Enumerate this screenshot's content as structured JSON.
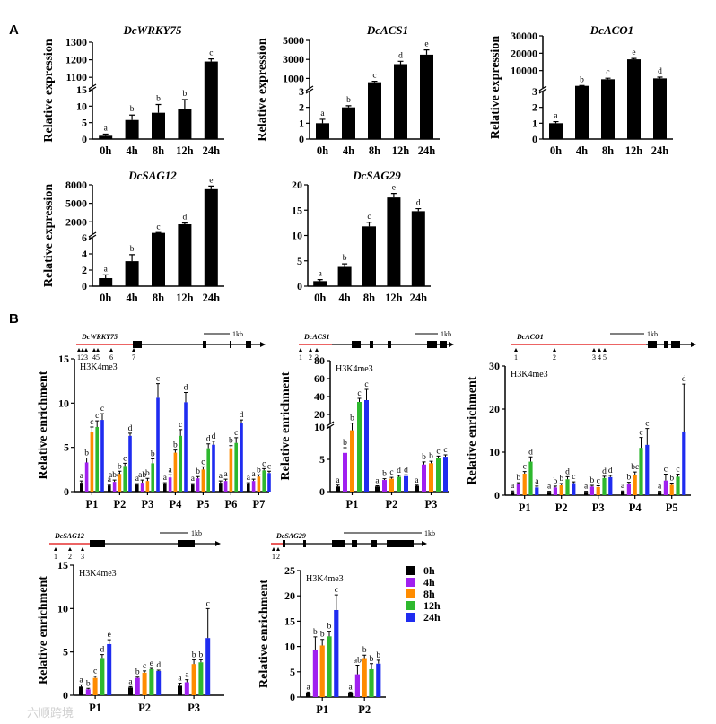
{
  "panel_labels": [
    "A",
    "B"
  ],
  "watermark": "六顺跨境",
  "colors": {
    "0h": "#000000",
    "4h": "#a020f0",
    "8h": "#ff8c00",
    "12h": "#2eb82e",
    "24h": "#1f2cf0",
    "promoter": "#e53030",
    "gene": "#000000"
  },
  "chart_data": [
    {
      "id": "wrky75",
      "type": "bar",
      "title": "DcWRKY75",
      "ylabel": "Relative expression",
      "categories": [
        "0h",
        "4h",
        "8h",
        "12h",
        "24h"
      ],
      "values": [
        1.0,
        5.8,
        8.0,
        9.0,
        1190
      ],
      "errors": [
        0.5,
        1.5,
        2.5,
        3.0,
        15
      ],
      "letters": [
        "a",
        "b",
        "b",
        "b",
        "c"
      ],
      "broken_axis": true,
      "lower_ticks": [
        "0",
        "5",
        "10",
        "15"
      ],
      "upper_ticks": [
        "1100",
        "1200",
        "1300"
      ],
      "lower_range": [
        0,
        15
      ],
      "upper_range": [
        1050,
        1300
      ]
    },
    {
      "id": "acs1",
      "type": "bar",
      "title": "DcACS1",
      "ylabel": "Relative expression",
      "categories": [
        "0h",
        "4h",
        "8h",
        "12h",
        "24h"
      ],
      "values": [
        1.0,
        2.0,
        600,
        2500,
        3500
      ],
      "errors": [
        0.25,
        0.1,
        100,
        300,
        500
      ],
      "letters": [
        "a",
        "b",
        "c",
        "d",
        "e"
      ],
      "broken_axis": true,
      "lower_ticks": [
        "0",
        "1",
        "2",
        "3"
      ],
      "upper_ticks": [
        "1000",
        "3000",
        "5000"
      ],
      "lower_range": [
        0,
        3
      ],
      "upper_range": [
        0,
        5000
      ]
    },
    {
      "id": "aco1",
      "type": "bar",
      "title": "DcACO1",
      "ylabel": "Relative expression",
      "categories": [
        "0h",
        "4h",
        "8h",
        "12h",
        "24h"
      ],
      "values": [
        1.0,
        1200,
        5000,
        16500,
        5500
      ],
      "errors": [
        0.1,
        200,
        600,
        500,
        700
      ],
      "letters": [
        "a",
        "b",
        "c",
        "e",
        "d"
      ],
      "broken_axis": true,
      "lower_ticks": [
        "0",
        "1",
        "2",
        "3"
      ],
      "upper_ticks": [
        "10000",
        "20000",
        "30000"
      ],
      "lower_range": [
        0,
        3
      ],
      "upper_range": [
        0,
        30000
      ]
    },
    {
      "id": "sag12",
      "type": "bar",
      "title": "DcSAG12",
      "ylabel": "Relative expression",
      "categories": [
        "0h",
        "4h",
        "8h",
        "12h",
        "24h"
      ],
      "values": [
        1.0,
        3.1,
        200,
        1600,
        7300
      ],
      "errors": [
        0.4,
        0.8,
        50,
        200,
        500
      ],
      "letters": [
        "a",
        "b",
        "c",
        "d",
        "e"
      ],
      "broken_axis": true,
      "lower_ticks": [
        "0",
        "2",
        "4",
        "6"
      ],
      "upper_ticks": [
        "2000",
        "5000",
        "8000"
      ],
      "lower_range": [
        0,
        6
      ],
      "upper_range": [
        0,
        8000
      ]
    },
    {
      "id": "sag29",
      "type": "bar",
      "title": "DcSAG29",
      "ylabel": "",
      "categories": [
        "0h",
        "4h",
        "8h",
        "12h",
        "24h"
      ],
      "values": [
        1.0,
        3.8,
        11.8,
        17.5,
        14.8
      ],
      "errors": [
        0.3,
        0.6,
        0.8,
        0.8,
        0.5
      ],
      "letters": [
        "a",
        "b",
        "c",
        "e",
        "d"
      ],
      "broken_axis": false,
      "ticks": [
        "0",
        "5",
        "10",
        "15",
        "20"
      ],
      "ylim": [
        0,
        20
      ]
    },
    {
      "id": "chip_wrky75",
      "type": "grouped_bar",
      "gene": "DcWRKY75",
      "mark": "H3K4me3",
      "ylabel": "Relative enrichment",
      "scale_label": "1kb",
      "promoter_sites": [
        "1",
        "2",
        "3",
        "4",
        "5",
        "6",
        "7"
      ],
      "categories": [
        "P1",
        "P2",
        "P3",
        "P4",
        "P5",
        "P6",
        "P7"
      ],
      "series": [
        {
          "name": "0h",
          "values": [
            1.0,
            0.7,
            0.8,
            0.9,
            0.8,
            1.0,
            0.9
          ],
          "errors": [
            0.2,
            0.1,
            0.1,
            0.1,
            0.1,
            0.2,
            0.1
          ],
          "letters": [
            "a",
            "a",
            "a",
            "a",
            "a",
            "a",
            "a"
          ]
        },
        {
          "name": "4h",
          "values": [
            3.3,
            1.1,
            1.0,
            1.6,
            1.5,
            1.2,
            1.2
          ],
          "errors": [
            0.5,
            0.2,
            0.3,
            0.3,
            0.2,
            0.2,
            0.2
          ],
          "letters": [
            "b",
            "abc",
            "ab",
            "a",
            "b",
            "a",
            "a"
          ]
        },
        {
          "name": "8h",
          "values": [
            6.7,
            2.0,
            1.2,
            4.4,
            2.5,
            4.9,
            1.7
          ],
          "errors": [
            0.6,
            0.3,
            0.3,
            0.3,
            0.3,
            0.3,
            0.2
          ],
          "letters": [
            "c",
            "b",
            "b",
            "b",
            "c",
            "b",
            "b"
          ]
        },
        {
          "name": "12h",
          "values": [
            7.3,
            2.9,
            3.2,
            6.3,
            4.9,
            5.5,
            2.4
          ],
          "errors": [
            0.7,
            0.3,
            0.5,
            0.7,
            0.5,
            0.6,
            0.2
          ],
          "letters": [
            "c",
            "c",
            "b",
            "c",
            "d",
            "c",
            "c"
          ]
        },
        {
          "name": "24h",
          "values": [
            8.1,
            6.3,
            10.6,
            10.1,
            5.3,
            7.7,
            2.1
          ],
          "errors": [
            0.7,
            0.3,
            1.6,
            1.1,
            0.4,
            0.4,
            0.2
          ],
          "letters": [
            "c",
            "d",
            "c",
            "d",
            "d",
            "d",
            "c"
          ]
        }
      ],
      "ticks": [
        "0",
        "5",
        "10",
        "15"
      ],
      "ylim": [
        0,
        15
      ]
    },
    {
      "id": "chip_acs1",
      "type": "grouped_bar",
      "gene": "DcACS1",
      "mark": "H3K4me3",
      "ylabel": "Relative enrichment",
      "scale_label": "1kb",
      "promoter_sites": [
        "1",
        "2",
        "3"
      ],
      "categories": [
        "P1",
        "P2",
        "P3"
      ],
      "series": [
        {
          "name": "0h",
          "values": [
            0.8,
            0.8,
            0.9
          ],
          "errors": [
            0.2,
            0.1,
            0.1
          ],
          "letters": [
            "a",
            "a",
            "a"
          ]
        },
        {
          "name": "4h",
          "values": [
            6.0,
            1.8,
            4.2
          ],
          "errors": [
            0.8,
            0.2,
            0.4
          ],
          "letters": [
            "b",
            "b",
            "b"
          ]
        },
        {
          "name": "8h",
          "values": [
            9.5,
            2.0,
            4.4
          ],
          "errors": [
            0.9,
            0.2,
            0.3
          ],
          "letters": [
            "b",
            "c",
            "b"
          ]
        },
        {
          "name": "12h",
          "values": [
            34,
            2.3,
            5.2
          ],
          "errors": [
            4,
            0.2,
            0.3
          ],
          "letters": [
            "c",
            "d",
            "c"
          ]
        },
        {
          "name": "24h",
          "values": [
            36,
            2.4,
            5.4
          ],
          "errors": [
            12,
            0.2,
            0.3
          ],
          "letters": [
            "c",
            "d",
            "c"
          ]
        }
      ],
      "broken_axis": true,
      "lower_ticks": [
        "0",
        "5",
        "10"
      ],
      "upper_ticks": [
        "20",
        "40",
        "60",
        "80"
      ],
      "lower_range": [
        0,
        10
      ],
      "upper_range": [
        10,
        80
      ]
    },
    {
      "id": "chip_aco1",
      "type": "grouped_bar",
      "gene": "DcACO1",
      "mark": "H3K4me3",
      "ylabel": "Relative enrichment",
      "scale_label": "1kb",
      "promoter_sites": [
        "1",
        "2",
        "3",
        "4",
        "5"
      ],
      "categories": [
        "P1",
        "P2",
        "P3",
        "P4",
        "P5"
      ],
      "series": [
        {
          "name": "0h",
          "values": [
            0.8,
            0.8,
            0.8,
            0.9,
            0.8
          ],
          "errors": [
            0.2,
            0.1,
            0.1,
            0.1,
            0.1
          ],
          "letters": [
            "a",
            "a",
            "a",
            "a",
            "a"
          ]
        },
        {
          "name": "4h",
          "values": [
            2.5,
            1.8,
            2.0,
            2.6,
            3.4
          ],
          "errors": [
            0.4,
            0.3,
            0.3,
            0.4,
            1.5
          ],
          "letters": [
            "b",
            "b",
            "b",
            "b",
            "c"
          ]
        },
        {
          "name": "8h",
          "values": [
            5.0,
            2.3,
            1.9,
            4.8,
            2.4
          ],
          "errors": [
            0.5,
            0.4,
            0.3,
            0.6,
            0.4
          ],
          "letters": [
            "c",
            "b",
            "c",
            "bc",
            "b"
          ]
        },
        {
          "name": "12h",
          "values": [
            7.8,
            3.7,
            4.0,
            11.0,
            4.3
          ],
          "errors": [
            1.1,
            0.6,
            0.4,
            2.4,
            0.6
          ],
          "letters": [
            "d",
            "d",
            "d",
            "c",
            "c"
          ]
        },
        {
          "name": "24h",
          "values": [
            1.8,
            2.8,
            4.2,
            11.7,
            14.8
          ],
          "errors": [
            0.3,
            0.3,
            0.4,
            3.8,
            11
          ],
          "letters": [
            "a",
            "c",
            "d",
            "c",
            "d"
          ]
        }
      ],
      "ticks": [
        "0",
        "10",
        "20",
        "30"
      ],
      "ylim": [
        0,
        30
      ]
    },
    {
      "id": "chip_sag12",
      "type": "grouped_bar",
      "gene": "DcSAG12",
      "mark": "H3K4me3",
      "ylabel": "Relative enrichment",
      "scale_label": "1kb",
      "promoter_sites": [
        "1",
        "2",
        "3"
      ],
      "categories": [
        "P1",
        "P2",
        "P3"
      ],
      "series": [
        {
          "name": "0h",
          "values": [
            1.0,
            0.9,
            1.1
          ],
          "errors": [
            0.2,
            0.1,
            0.3
          ],
          "letters": [
            "a",
            "a",
            "a"
          ]
        },
        {
          "name": "4h",
          "values": [
            0.7,
            2.0,
            1.5
          ],
          "errors": [
            0.1,
            0.1,
            0.3
          ],
          "letters": [
            "b",
            "b",
            "a"
          ]
        },
        {
          "name": "8h",
          "values": [
            2.0,
            2.6,
            3.6
          ],
          "errors": [
            0.2,
            0.2,
            0.5
          ],
          "letters": [
            "c",
            "c",
            "b"
          ]
        },
        {
          "name": "12h",
          "values": [
            4.3,
            3.0,
            3.8
          ],
          "errors": [
            0.4,
            0.1,
            0.3
          ],
          "letters": [
            "d",
            "e",
            "b"
          ]
        },
        {
          "name": "24h",
          "values": [
            5.9,
            2.8,
            6.6
          ],
          "errors": [
            0.5,
            0.1,
            3.4
          ],
          "letters": [
            "e",
            "d",
            "c"
          ]
        }
      ],
      "ticks": [
        "0",
        "5",
        "10",
        "15"
      ],
      "ylim": [
        0,
        15
      ]
    },
    {
      "id": "chip_sag29",
      "type": "grouped_bar",
      "gene": "DcSAG29",
      "mark": "H3K4me3",
      "ylabel": "Relative enrichment",
      "scale_label": "1kb",
      "promoter_sites": [
        "1",
        "2"
      ],
      "categories": [
        "P1",
        "P2"
      ],
      "series": [
        {
          "name": "0h",
          "values": [
            0.8,
            0.8
          ],
          "errors": [
            0.2,
            0.2
          ],
          "letters": [
            "a",
            "a"
          ]
        },
        {
          "name": "4h",
          "values": [
            9.4,
            4.5
          ],
          "errors": [
            2.5,
            1.8
          ],
          "letters": [
            "b",
            "ab"
          ]
        },
        {
          "name": "8h",
          "values": [
            10.2,
            7.7
          ],
          "errors": [
            1.2,
            0.6
          ],
          "letters": [
            "b",
            "b"
          ]
        },
        {
          "name": "12h",
          "values": [
            12.0,
            5.5
          ],
          "errors": [
            1.0,
            1.1
          ],
          "letters": [
            "b",
            "b"
          ]
        },
        {
          "name": "24h",
          "values": [
            17.2,
            6.6
          ],
          "errors": [
            3.0,
            0.7
          ],
          "letters": [
            "c",
            "b"
          ]
        }
      ],
      "ticks": [
        "0",
        "5",
        "10",
        "15",
        "20",
        "25"
      ],
      "ylim": [
        0,
        25
      ]
    }
  ],
  "legend": [
    "0h",
    "4h",
    "8h",
    "12h",
    "24h"
  ]
}
